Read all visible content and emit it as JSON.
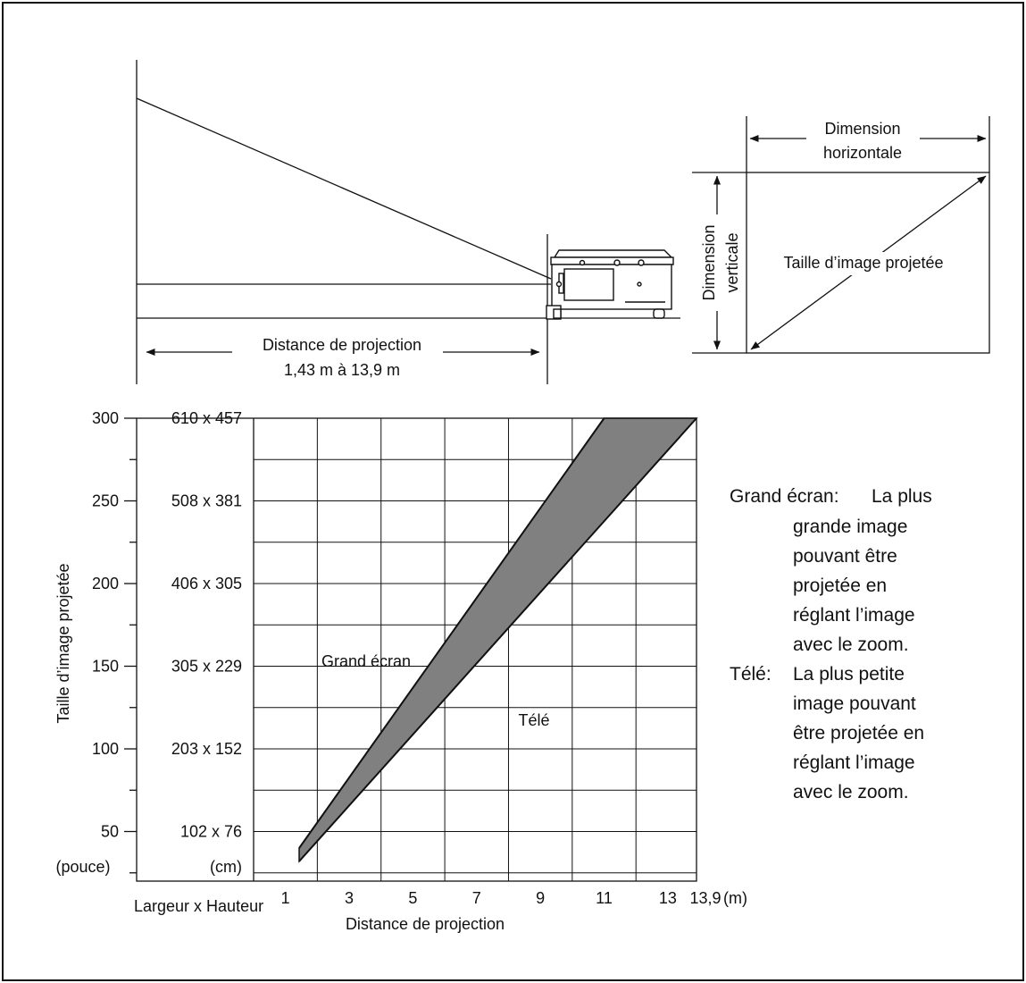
{
  "top_diagram": {
    "distance_label": "Distance de projection",
    "distance_range": "1,43 m à 13,9 m",
    "dim_horizontal_line1": "Dimension",
    "dim_horizontal_line2": "horizontale",
    "dim_vertical_line1": "Dimension",
    "dim_vertical_line2": "verticale",
    "image_size_label": "Taille d’image projetée"
  },
  "chart_data": {
    "type": "area",
    "ylabel": "Taille d’image projetée",
    "xlabel": "Distance de projection",
    "x_unit": "(m)",
    "y_unit": "(pouce)",
    "cm_unit": "(cm)",
    "wh_label": "Largeur x Hauteur",
    "xlim": [
      0,
      13.9
    ],
    "ylim": [
      20,
      300
    ],
    "x_ticks": [
      "1",
      "3",
      "5",
      "7",
      "9",
      "11",
      "13",
      "13,9"
    ],
    "y_ticks": [
      "50",
      "100",
      "150",
      "200",
      "250",
      "300"
    ],
    "y_tick_values": [
      50,
      100,
      150,
      200,
      250,
      300
    ],
    "cm_ticks": [
      "102 x 76",
      "203 x 152",
      "305 x 229",
      "406 x 305",
      "508 x 381",
      "610 x 457"
    ],
    "series": [
      {
        "name": "Grand écran",
        "x": [
          1.43,
          11.0
        ],
        "y": [
          40,
          300
        ]
      },
      {
        "name": "Télé",
        "x": [
          1.43,
          13.9
        ],
        "y": [
          32,
          300
        ]
      }
    ],
    "series_labels": {
      "wide": "Grand écran",
      "tele": "Télé"
    },
    "fill_color": "#808080"
  },
  "legend": {
    "wide_term": "Grand écran:",
    "wide_lines": [
      "La plus",
      "grande image",
      "pouvant être",
      "projetée en",
      "réglant l’image",
      "avec le zoom."
    ],
    "tele_term": "Télé:",
    "tele_lines": [
      "La plus petite",
      "image pouvant",
      "être projetée en",
      "réglant l’image",
      "avec le zoom."
    ]
  }
}
